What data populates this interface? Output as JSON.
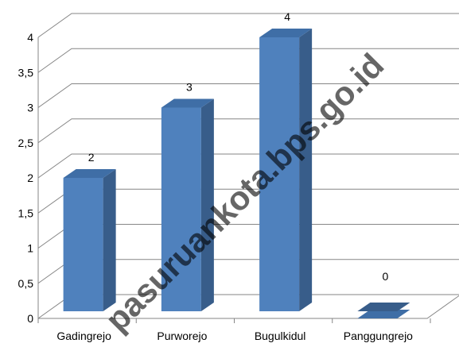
{
  "chart_data": {
    "type": "bar",
    "three_d": true,
    "categories": [
      "Gadingrejo",
      "Purworejo",
      "Bugulkidul",
      "Panggungrejo"
    ],
    "values": [
      2,
      3,
      4,
      0
    ],
    "data_labels": [
      "2",
      "3",
      "4",
      "0"
    ],
    "y_ticks": [
      "0",
      "0,5",
      "1",
      "1,5",
      "2",
      "2,5",
      "3",
      "3,5",
      "4"
    ],
    "ylim": [
      0,
      4
    ],
    "grid": true,
    "legend": "none",
    "colors": {
      "bar_front": "#4f81bd",
      "bar_side": "#385d8a",
      "bar_top": "#3f6ea6",
      "grid": "#868686"
    }
  },
  "watermark": "pasuruankota.bps.go.id"
}
